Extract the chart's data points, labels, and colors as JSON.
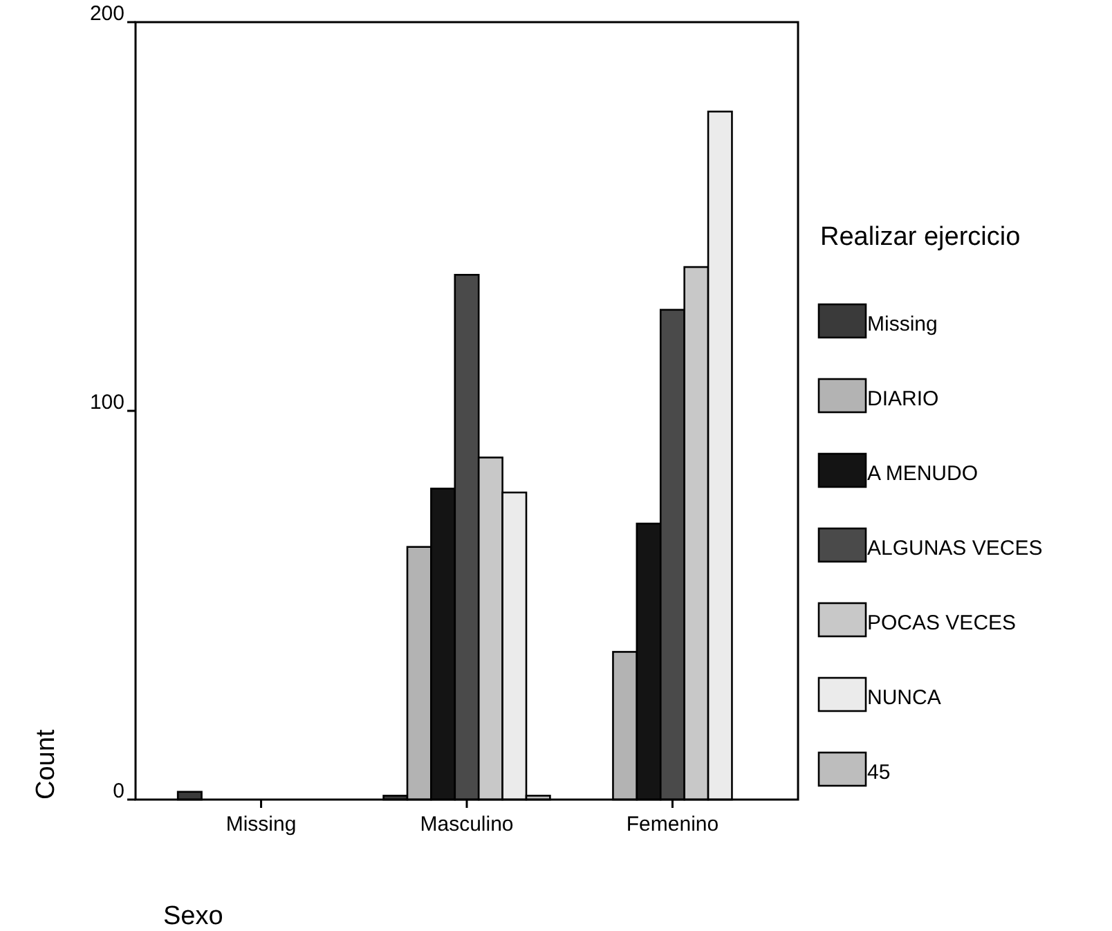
{
  "chart_data": {
    "type": "bar",
    "xlabel": "Sexo",
    "ylabel": "Count",
    "legend_title": "Realizar ejercicio",
    "categories": [
      "Missing",
      "Masculino",
      "Femenino"
    ],
    "series": [
      {
        "name": "Missing",
        "color": "#3a3a3a",
        "values": [
          2,
          1,
          0
        ]
      },
      {
        "name": "DIARIO",
        "color": "#b3b3b3",
        "values": [
          0,
          65,
          38
        ]
      },
      {
        "name": "A MENUDO",
        "color": "#141414",
        "values": [
          0,
          80,
          71
        ]
      },
      {
        "name": "ALGUNAS VECES",
        "color": "#4a4a4a",
        "values": [
          0,
          135,
          126
        ]
      },
      {
        "name": "POCAS VECES",
        "color": "#c8c8c8",
        "values": [
          0,
          88,
          137
        ]
      },
      {
        "name": "NUNCA",
        "color": "#ebebeb",
        "values": [
          0,
          79,
          177
        ]
      },
      {
        "name": "45",
        "color": "#bdbdbd",
        "values": [
          0,
          1,
          0
        ]
      }
    ],
    "ylim": [
      0,
      200
    ],
    "yticks": [
      0,
      100,
      200
    ],
    "grid": false,
    "legend": "right"
  }
}
